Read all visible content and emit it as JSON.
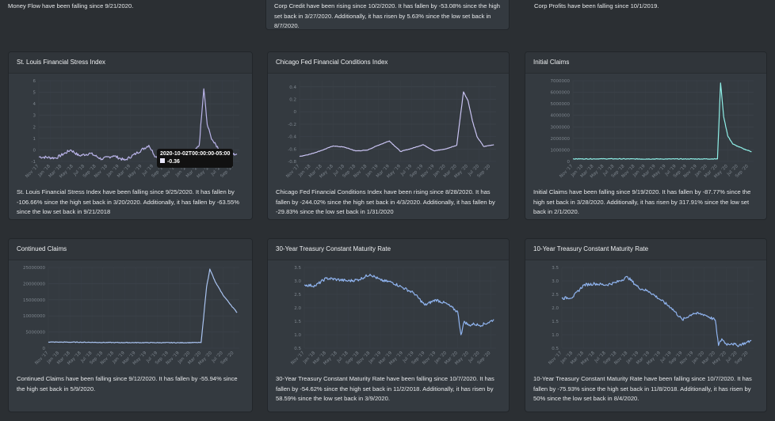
{
  "top_row": {
    "money_flow_text": "Money Flow have been falling since 9/21/2020.",
    "corp_credit_text": "Corp Credit have been rising since 10/2/2020. It has fallen by -53.08% since the high set back in 3/27/2020. Additionally, it has risen by 5.63% since the low set back in 8/7/2020.",
    "corp_profits_text": "Corp Profits have been falling since 10/1/2019."
  },
  "x_ticks": [
    "Nov '17",
    "Jan '18",
    "Mar '18",
    "May '18",
    "Jul '18",
    "Sep '18",
    "Nov '18",
    "Jan '19",
    "Mar '19",
    "May '19",
    "Jul '19",
    "Sep '19",
    "Nov '19",
    "Jan '20",
    "Mar '20",
    "May '20",
    "Jul '20",
    "Sep '20"
  ],
  "colors": {
    "stress": "#b9b3e8",
    "chicago": "#c9c3f2",
    "claims": "#8ff0e8",
    "continued": "#a9c3f0",
    "treasury": "#8fb3ee"
  },
  "cards": [
    {
      "id": "stress",
      "title": "St. Louis Financial Stress Index",
      "text": "St. Louis Financial Stress Index have been falling since 9/25/2020. It has fallen by -106.66% since the high set back in 3/20/2020. Additionally, it has fallen by -63.55% since the low set back in 9/21/2018",
      "tooltip": {
        "date": "2020-10-02T00:00:00-05:00",
        "value": "-0.36"
      }
    },
    {
      "id": "chicago",
      "title": "Chicago Fed Financial Conditions Index",
      "text": "Chicago Fed Financial Conditions Index have been rising since 8/28/2020. It has fallen by -244.02% since the high set back in 4/3/2020. Additionally, it has fallen by -29.83% since the low set back in 1/31/2020"
    },
    {
      "id": "claims",
      "title": "Initial Claims",
      "text": "Initial Claims have been falling since 9/19/2020. It has fallen by -87.77% since the high set back in 3/28/2020. Additionally, it has risen by 317.91% since the low set back in 2/1/2020."
    },
    {
      "id": "continued",
      "title": "Continued Claims",
      "text": "Continued Claims have been falling since 9/12/2020. It has fallen by -55.94% since the high set back in 5/9/2020."
    },
    {
      "id": "t30",
      "title": "30-Year Treasury Constant Maturity Rate",
      "text": "30-Year Treasury Constant Maturity Rate have been falling since 10/7/2020. It has fallen by -54.62% since the high set back in 11/2/2018. Additionally, it has risen by 58.59% since the low set back in 3/9/2020."
    },
    {
      "id": "t10",
      "title": "10-Year Treasury Constant Maturity Rate",
      "text": "10-Year Treasury Constant Maturity Rate have been falling since 10/7/2020. It has fallen by -75.93% since the high set back in 11/8/2018. Additionally, it has risen by 50% since the low set back in 8/4/2020."
    }
  ],
  "chart_data": [
    {
      "type": "line",
      "title": "St. Louis Financial Stress Index",
      "ylim": [
        -1,
        6
      ],
      "yticks": [
        "-1",
        "0",
        "1",
        "2",
        "3",
        "4",
        "5",
        "6"
      ],
      "series": [
        {
          "values": [
            [
              0,
              -0.6
            ],
            [
              1.5,
              -0.7
            ],
            [
              2.8,
              0.0
            ],
            [
              3.5,
              -0.5
            ],
            [
              4.5,
              -0.3
            ],
            [
              5.5,
              -0.8
            ],
            [
              6.5,
              -0.5
            ],
            [
              7.5,
              -0.9
            ],
            [
              8.5,
              -0.3
            ],
            [
              9.6,
              0.4
            ],
            [
              10.2,
              -0.6
            ],
            [
              11,
              -0.8
            ],
            [
              12,
              -0.6
            ],
            [
              13,
              -0.9
            ],
            [
              14.0,
              0.4
            ],
            [
              14.4,
              5.3
            ],
            [
              14.7,
              2.2
            ],
            [
              15.0,
              1.2
            ],
            [
              15.3,
              0.6
            ],
            [
              15.8,
              0.0
            ],
            [
              16.5,
              -0.4
            ],
            [
              17.3,
              -0.36
            ]
          ]
        }
      ]
    },
    {
      "type": "line",
      "title": "Chicago Fed Financial Conditions Index",
      "ylim": [
        -0.8,
        0.5
      ],
      "yticks": [
        "-0.8",
        "-0.6",
        "-0.4",
        "-0.2",
        "0",
        "0.2",
        "0.4"
      ],
      "series": [
        {
          "values": [
            [
              0,
              -0.72
            ],
            [
              1,
              -0.68
            ],
            [
              2,
              -0.62
            ],
            [
              3,
              -0.55
            ],
            [
              4,
              -0.57
            ],
            [
              5,
              -0.63
            ],
            [
              6,
              -0.62
            ],
            [
              7,
              -0.54
            ],
            [
              8,
              -0.47
            ],
            [
              9,
              -0.64
            ],
            [
              10,
              -0.59
            ],
            [
              11,
              -0.53
            ],
            [
              12,
              -0.63
            ],
            [
              13,
              -0.6
            ],
            [
              14,
              -0.54
            ],
            [
              14.3,
              -0.1
            ],
            [
              14.6,
              0.32
            ],
            [
              15.0,
              0.18
            ],
            [
              15.4,
              -0.15
            ],
            [
              15.8,
              -0.4
            ],
            [
              16.4,
              -0.56
            ],
            [
              17.3,
              -0.53
            ]
          ]
        }
      ]
    },
    {
      "type": "line",
      "title": "Initial Claims",
      "ylim": [
        0,
        7000000
      ],
      "yticks": [
        "0",
        "1000000",
        "2000000",
        "3000000",
        "4000000",
        "5000000",
        "6000000",
        "7000000"
      ],
      "series": [
        {
          "values": [
            [
              0,
              220000
            ],
            [
              3,
              225000
            ],
            [
              6,
              215000
            ],
            [
              9,
              210000
            ],
            [
              12,
              215000
            ],
            [
              14.0,
              220000
            ],
            [
              14.3,
              6800000
            ],
            [
              14.6,
              3900000
            ],
            [
              15.0,
              2200000
            ],
            [
              15.5,
              1500000
            ],
            [
              16.0,
              1300000
            ],
            [
              16.5,
              1100000
            ],
            [
              17.3,
              850000
            ]
          ]
        }
      ]
    },
    {
      "type": "line",
      "title": "Continued Claims",
      "ylim": [
        0,
        25000000
      ],
      "yticks": [
        "0",
        "5000000",
        "10000000",
        "15000000",
        "20000000",
        "25000000"
      ],
      "series": [
        {
          "values": [
            [
              0,
              1900000
            ],
            [
              3,
              1850000
            ],
            [
              6,
              1750000
            ],
            [
              9,
              1720000
            ],
            [
              12,
              1700000
            ],
            [
              14.0,
              1750000
            ],
            [
              14.5,
              19000000
            ],
            [
              14.8,
              24500000
            ],
            [
              15.3,
              20500000
            ],
            [
              16.0,
              16500000
            ],
            [
              16.7,
              13500000
            ],
            [
              17.3,
              11000000
            ]
          ]
        }
      ]
    },
    {
      "type": "line",
      "title": "30-Year Treasury Constant Maturity Rate",
      "ylim": [
        0.5,
        3.5
      ],
      "yticks": [
        "0.5",
        "1.0",
        "1.5",
        "2.0",
        "2.5",
        "3.0",
        "3.5"
      ],
      "series": [
        {
          "values": [
            [
              0,
              2.85
            ],
            [
              1,
              2.82
            ],
            [
              2,
              3.1
            ],
            [
              3,
              3.05
            ],
            [
              4,
              3.0
            ],
            [
              5,
              3.05
            ],
            [
              6,
              3.25
            ],
            [
              7,
              3.02
            ],
            [
              8,
              2.95
            ],
            [
              9,
              2.75
            ],
            [
              10,
              2.55
            ],
            [
              11,
              2.1
            ],
            [
              12,
              2.3
            ],
            [
              13,
              2.15
            ],
            [
              14.0,
              1.85
            ],
            [
              14.3,
              1.0
            ],
            [
              14.6,
              1.5
            ],
            [
              15.0,
              1.35
            ],
            [
              15.5,
              1.4
            ],
            [
              16.0,
              1.35
            ],
            [
              16.8,
              1.45
            ],
            [
              17.3,
              1.57
            ]
          ]
        }
      ]
    },
    {
      "type": "line",
      "title": "10-Year Treasury Constant Maturity Rate",
      "ylim": [
        0.5,
        3.5
      ],
      "yticks": [
        "0.5",
        "1.0",
        "1.5",
        "2.0",
        "2.5",
        "3.0",
        "3.5"
      ],
      "series": [
        {
          "values": [
            [
              0,
              2.35
            ],
            [
              1,
              2.4
            ],
            [
              2,
              2.85
            ],
            [
              3,
              2.9
            ],
            [
              4,
              2.85
            ],
            [
              5,
              2.95
            ],
            [
              6,
              3.15
            ],
            [
              7,
              2.75
            ],
            [
              8,
              2.6
            ],
            [
              9,
              2.3
            ],
            [
              10,
              2.0
            ],
            [
              11,
              1.55
            ],
            [
              12,
              1.8
            ],
            [
              13,
              1.75
            ],
            [
              14.0,
              1.55
            ],
            [
              14.3,
              0.6
            ],
            [
              14.6,
              0.85
            ],
            [
              15.0,
              0.65
            ],
            [
              15.5,
              0.68
            ],
            [
              16.0,
              0.6
            ],
            [
              16.8,
              0.7
            ],
            [
              17.3,
              0.78
            ]
          ]
        }
      ]
    }
  ]
}
